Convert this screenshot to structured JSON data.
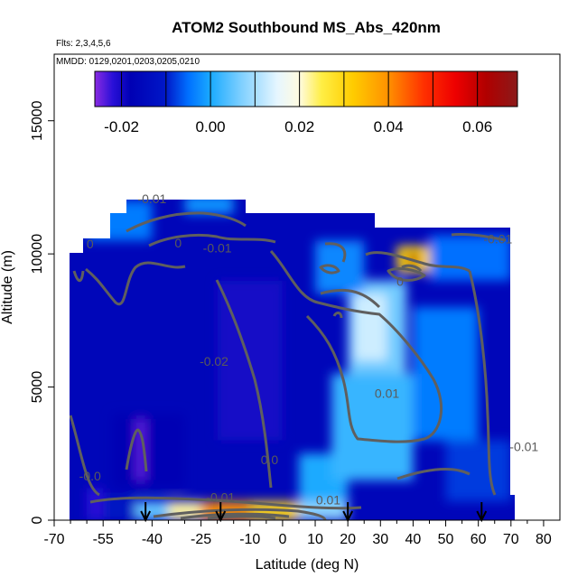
{
  "chart_data": {
    "type": "heatmap",
    "title": "ATOM2 Southbound MS_Abs_420nm",
    "flights_note": "Flts: 2,3,4,5,6",
    "dates_note": "MMDD: 0129,0201,0203,0205,0210",
    "xlabel": "Latitude (deg N)",
    "ylabel": "Altitude (m)",
    "xlim": [
      -70,
      85
    ],
    "ylim": [
      0,
      17500
    ],
    "x_ticks": [
      -70,
      -55,
      -40,
      -25,
      -10,
      0,
      10,
      20,
      30,
      40,
      50,
      60,
      70,
      80
    ],
    "x_minor_ticks": [
      -65,
      -60,
      -50,
      -45,
      -35,
      -30,
      -20,
      -15,
      -5,
      5,
      15,
      25,
      35,
      45,
      55,
      65,
      75
    ],
    "y_ticks": [
      0,
      5000,
      10000,
      15000
    ],
    "colorbar": {
      "range": [
        -0.026,
        0.069
      ],
      "ticks": [
        -0.02,
        0.0,
        0.02,
        0.04,
        0.06
      ],
      "tick_labels": [
        "-0.02",
        "0.00",
        "0.02",
        "0.04",
        "0.06"
      ],
      "divisions": [
        -0.02,
        -0.01,
        0.0,
        0.01,
        0.02,
        0.03,
        0.04,
        0.05,
        0.06
      ],
      "stops": [
        {
          "v": -0.026,
          "c": "#8a2be2"
        },
        {
          "v": -0.022,
          "c": "#2a10d8"
        },
        {
          "v": -0.018,
          "c": "#0000b4"
        },
        {
          "v": -0.01,
          "c": "#0018c8"
        },
        {
          "v": -0.005,
          "c": "#0070ff"
        },
        {
          "v": 0.0,
          "c": "#1aaaff"
        },
        {
          "v": 0.007,
          "c": "#80d0ff"
        },
        {
          "v": 0.015,
          "c": "#e6f6ff"
        },
        {
          "v": 0.02,
          "c": "#fffbe0"
        },
        {
          "v": 0.025,
          "c": "#ffee44"
        },
        {
          "v": 0.032,
          "c": "#ffcc00"
        },
        {
          "v": 0.04,
          "c": "#ff9000"
        },
        {
          "v": 0.048,
          "c": "#ff3000"
        },
        {
          "v": 0.055,
          "c": "#ee0000"
        },
        {
          "v": 0.062,
          "c": "#b00000"
        },
        {
          "v": 0.069,
          "c": "#8b1a1a"
        }
      ]
    },
    "contour_labels": [
      {
        "text": "-0.01",
        "x": -40,
        "y": 11900
      },
      {
        "text": "0",
        "x": -32,
        "y": 10250
      },
      {
        "text": "-0.01",
        "x": -20,
        "y": 10050
      },
      {
        "text": "-0.01",
        "x": 66,
        "y": 10400
      },
      {
        "text": "0",
        "x": -59,
        "y": 10200
      },
      {
        "text": "0",
        "x": 36,
        "y": 8800
      },
      {
        "text": "-0.02",
        "x": -21,
        "y": 5800
      },
      {
        "text": "0.01",
        "x": 32,
        "y": 4600
      },
      {
        "text": "0.0",
        "x": -4,
        "y": 2100
      },
      {
        "text": "-0.0",
        "x": -59,
        "y": 1500
      },
      {
        "text": "-0.01",
        "x": -19,
        "y": 700
      },
      {
        "text": "0.01",
        "x": 14,
        "y": 600
      },
      {
        "text": "-0.01",
        "x": 74,
        "y": 2600
      }
    ],
    "flight_markers_x": [
      -42,
      -19,
      20,
      61
    ],
    "field_cells": [
      {
        "x0": -60,
        "x1": -55,
        "y0": 0,
        "y1": 1200,
        "v": -0.022
      },
      {
        "x0": -55,
        "x1": -45,
        "y0": 0,
        "y1": 900,
        "v": -0.012
      },
      {
        "x0": -45,
        "x1": -35,
        "y0": 0,
        "y1": 700,
        "v": 0.005
      },
      {
        "x0": -35,
        "x1": -25,
        "y0": 0,
        "y1": 700,
        "v": 0.022
      },
      {
        "x0": -25,
        "x1": -10,
        "y0": 0,
        "y1": 700,
        "v": 0.04
      },
      {
        "x0": -10,
        "x1": 5,
        "y0": 0,
        "y1": 700,
        "v": 0.03
      },
      {
        "x0": 5,
        "x1": 20,
        "y0": 0,
        "y1": 700,
        "v": 0.008
      },
      {
        "x0": -52,
        "x1": -30,
        "y0": 1200,
        "y1": 4000,
        "v": -0.018
      },
      {
        "x0": -45,
        "x1": -42,
        "y0": 1500,
        "y1": 3800,
        "v": -0.024
      },
      {
        "x0": 5,
        "x1": 20,
        "y0": 700,
        "y1": 2500,
        "v": 0.0
      },
      {
        "x0": 15,
        "x1": 40,
        "y0": 1500,
        "y1": 5500,
        "v": 0.002
      },
      {
        "x0": 20,
        "x1": 38,
        "y0": 5500,
        "y1": 9000,
        "v": 0.006
      },
      {
        "x0": 22,
        "x1": 32,
        "y0": 6000,
        "y1": 8500,
        "v": 0.013
      },
      {
        "x0": 40,
        "x1": 60,
        "y0": 3000,
        "y1": 8000,
        "v": -0.004
      },
      {
        "x0": 10,
        "x1": 25,
        "y0": 8500,
        "y1": 10500,
        "v": -0.003
      },
      {
        "x0": 35,
        "x1": 50,
        "y0": 9300,
        "y1": 10300,
        "v": 0.03
      },
      {
        "x0": 38,
        "x1": 42,
        "y0": 9600,
        "y1": 10000,
        "v": 0.065
      },
      {
        "x0": -60,
        "x1": -40,
        "y0": 10500,
        "y1": 12000,
        "v": -0.004
      },
      {
        "x0": -30,
        "x1": -15,
        "y0": 11500,
        "y1": 12200,
        "v": -0.002
      },
      {
        "x0": 45,
        "x1": 70,
        "y0": 9000,
        "y1": 10700,
        "v": -0.005
      },
      {
        "x0": -20,
        "x1": 0,
        "y0": 3000,
        "y1": 9000,
        "v": -0.02
      },
      {
        "x0": 50,
        "x1": 70,
        "y0": 700,
        "y1": 3000,
        "v": -0.008
      }
    ],
    "background_value": -0.016,
    "grid": false
  }
}
